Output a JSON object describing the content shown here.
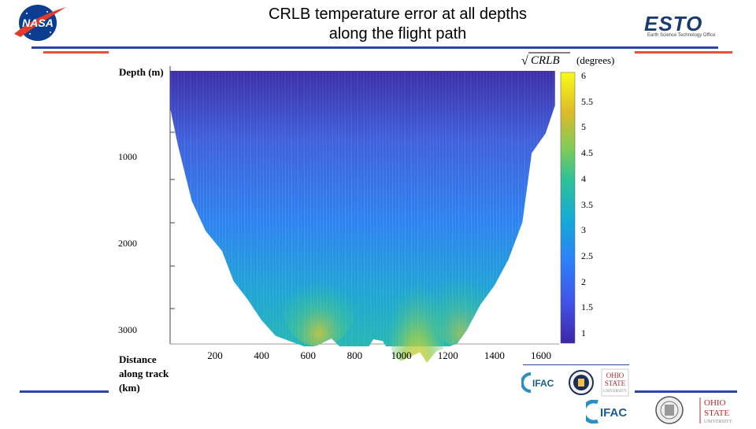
{
  "title_line1": "CRLB temperature error at all depths",
  "title_line2": "along the flight path",
  "colors": {
    "accent_red": "#e0533c",
    "accent_blue": "#2b46a8",
    "nasa_blue": "#0b3d91"
  },
  "logos": {
    "nasa": "nasa-meatball-logo",
    "esto_word": "ESTO",
    "esto_sub": "Earth Science Technology Office",
    "ifac": "IFAC",
    "osu_line1": "OHIO",
    "osu_line2": "STATE",
    "osu_line3": "UNIVERSITY"
  },
  "chart_data": {
    "type": "heatmap",
    "title": "",
    "ylabel": "Depth (m)",
    "xlabel_lines": [
      "Distance",
      "along track",
      "(km)"
    ],
    "colorbar_label": "(degrees)",
    "colorbar_symbol": "CRLB",
    "y_ticks": [
      "1000",
      "2000",
      "3000"
    ],
    "x_ticks": [
      "200",
      "400",
      "600",
      "800",
      "1000",
      "1200",
      "1400",
      "1600"
    ],
    "colorbar_ticks": [
      "6",
      "5.5",
      "5",
      "4.5",
      "4",
      "3.5",
      "3",
      "2.5",
      "2",
      "1.5",
      "1"
    ],
    "ylim": [
      0,
      3500
    ],
    "xlim": [
      0,
      1700
    ],
    "clim": [
      0.8,
      6
    ],
    "bottom_depth_profile": {
      "distance_km": [
        0,
        40,
        100,
        160,
        230,
        280,
        340,
        400,
        460,
        520,
        560,
        600,
        640,
        700,
        760,
        800,
        840,
        880,
        920,
        960,
        1000,
        1040,
        1080,
        1110,
        1150,
        1190,
        1240,
        1280,
        1340,
        1400,
        1460,
        1520,
        1560,
        1620,
        1660
      ],
      "bottom_depth_m": [
        330,
        850,
        1500,
        1850,
        2080,
        2430,
        2640,
        2880,
        3060,
        3120,
        3160,
        3200,
        3170,
        3090,
        3250,
        3180,
        3270,
        3100,
        3120,
        3290,
        3350,
        3300,
        3250,
        3370,
        3240,
        3200,
        3150,
        3000,
        2700,
        2480,
        2180,
        1750,
        950,
        720,
        400
      ]
    },
    "max_error_deg": [
      {
        "distance_km": 600,
        "value": 3.0
      },
      {
        "distance_km": 1100,
        "value": 5.3
      },
      {
        "distance_km": 1300,
        "value": 2.4
      }
    ]
  }
}
